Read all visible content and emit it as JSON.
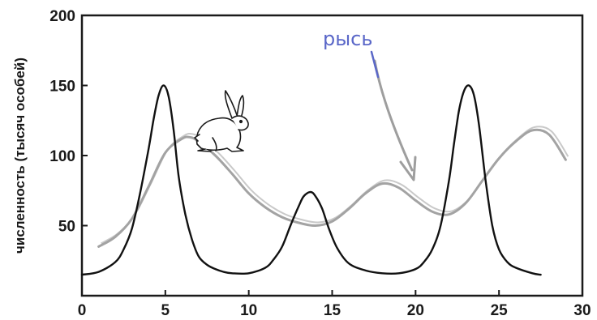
{
  "chart_data": {
    "type": "line",
    "title": "",
    "xlabel": "",
    "ylabel": "численность (тысяч особей)",
    "xlim": [
      0,
      30
    ],
    "ylim": [
      0,
      200
    ],
    "x_ticks": [
      0,
      5,
      10,
      15,
      20,
      25,
      30
    ],
    "y_ticks": [
      50,
      100,
      150,
      200
    ],
    "grid": false,
    "legend": "none",
    "annotations": [
      "рысь"
    ],
    "series": [
      {
        "color": "#111111",
        "x": [
          0,
          1,
          2,
          2.5,
          3,
          3.5,
          4,
          4.3,
          4.6,
          4.9,
          5.2,
          5.5,
          5.8,
          6.2,
          6.6,
          7,
          7.5,
          8,
          8.5,
          9,
          10,
          11,
          11.5,
          12,
          12.5,
          13,
          13.3,
          13.7,
          14,
          14.4,
          14.8,
          15.3,
          16,
          17,
          18,
          19,
          20,
          20.5,
          21,
          21.5,
          22,
          22.3,
          22.6,
          22.9,
          23.2,
          23.5,
          23.8,
          24.2,
          24.6,
          25,
          25.5,
          26,
          27,
          27.5
        ],
        "y": [
          15,
          17,
          24,
          33,
          48,
          74,
          105,
          126,
          143,
          150,
          142,
          118,
          85,
          58,
          40,
          28,
          22,
          19,
          17,
          16,
          16,
          20,
          26,
          35,
          50,
          64,
          71,
          74,
          71,
          62,
          48,
          34,
          23,
          18,
          16,
          16,
          19,
          24,
          33,
          50,
          82,
          108,
          132,
          146,
          150,
          143,
          122,
          82,
          50,
          33,
          24,
          20,
          16,
          15
        ]
      },
      {
        "color": "#a3a3a3",
        "x": [
          1,
          2,
          3,
          4,
          5,
          6,
          6.5,
          7,
          8,
          9,
          10,
          11,
          12,
          13,
          14,
          15,
          16,
          17,
          18,
          19,
          20,
          21,
          22,
          23,
          24,
          25,
          26,
          27,
          28,
          29
        ],
        "y": [
          35,
          42,
          55,
          78,
          102,
          112,
          113,
          110,
          100,
          87,
          73,
          63,
          56,
          52,
          50,
          53,
          62,
          73,
          80,
          77,
          68,
          60,
          58,
          66,
          82,
          98,
          110,
          118,
          115,
          97
        ]
      }
    ]
  }
}
